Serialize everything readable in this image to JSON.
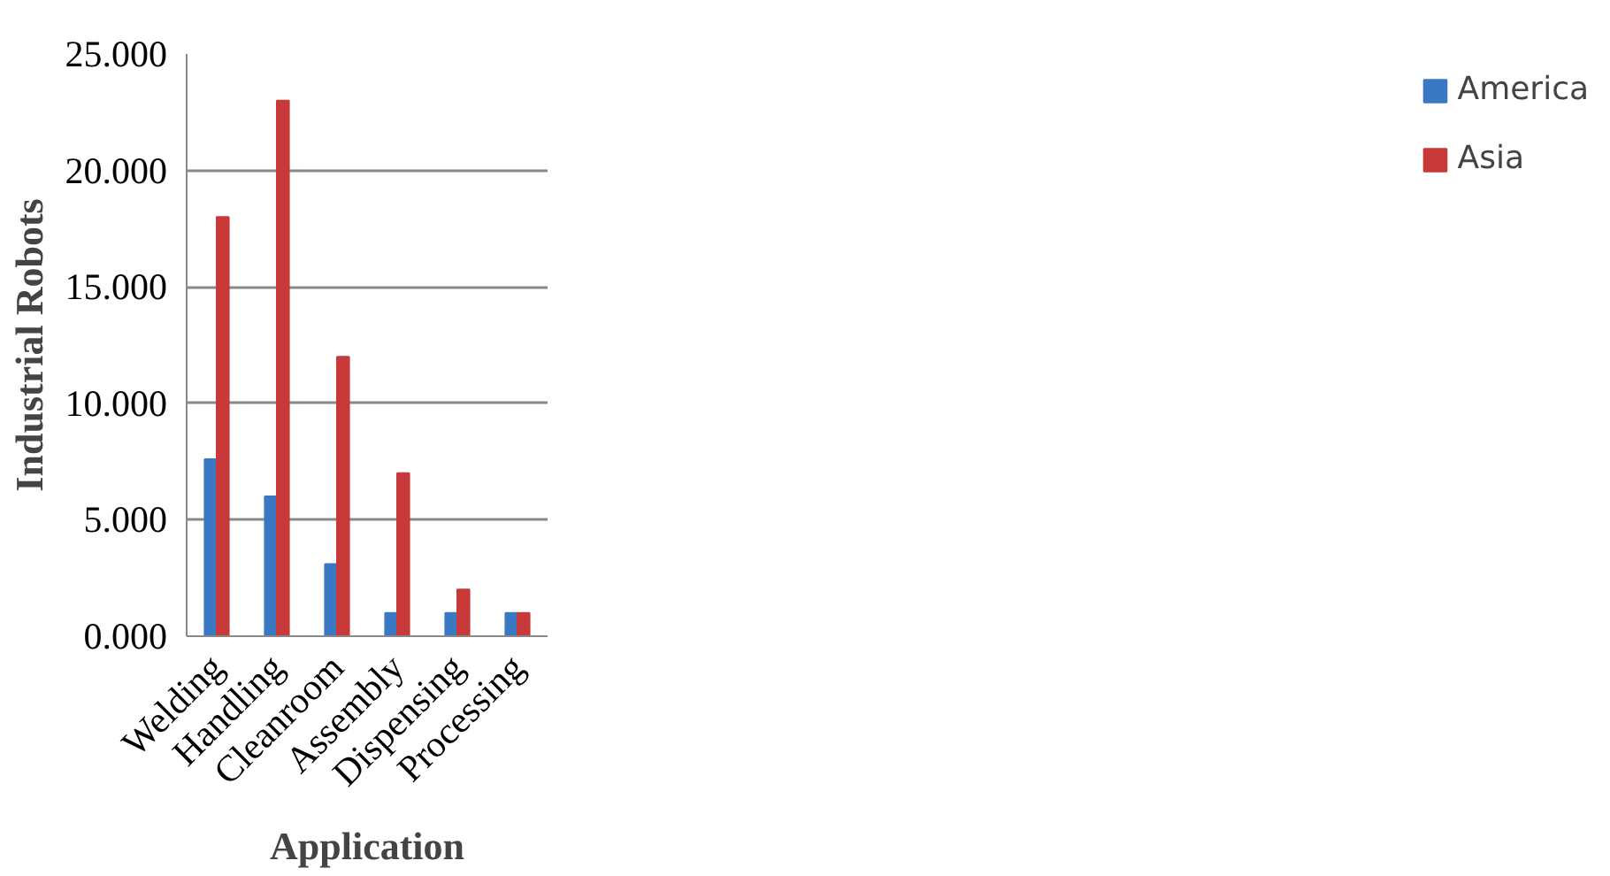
{
  "chart_data": {
    "type": "bar",
    "xlabel": "Application",
    "ylabel": "Industrial Robots",
    "categories": [
      "Welding",
      "Handling",
      "Cleanroom",
      "Assembly",
      "Dispensing",
      "Processing"
    ],
    "series": [
      {
        "name": "America",
        "color": "#3a78c4",
        "values": [
          7.6,
          6.0,
          3.1,
          1.0,
          1.0,
          1.0
        ]
      },
      {
        "name": "Asia",
        "color": "#c8393a",
        "values": [
          18.0,
          23.0,
          12.0,
          7.0,
          2.0,
          1.0
        ]
      }
    ],
    "ylim": [
      0,
      25
    ],
    "yticks": [
      {
        "value": 0,
        "label": "0.000"
      },
      {
        "value": 5,
        "label": "5.000"
      },
      {
        "value": 10,
        "label": "10.000"
      },
      {
        "value": 15,
        "label": "15.000"
      },
      {
        "value": 20,
        "label": "20.000"
      },
      {
        "value": 25,
        "label": "25.000"
      }
    ],
    "grid": "y",
    "legend": "right"
  }
}
